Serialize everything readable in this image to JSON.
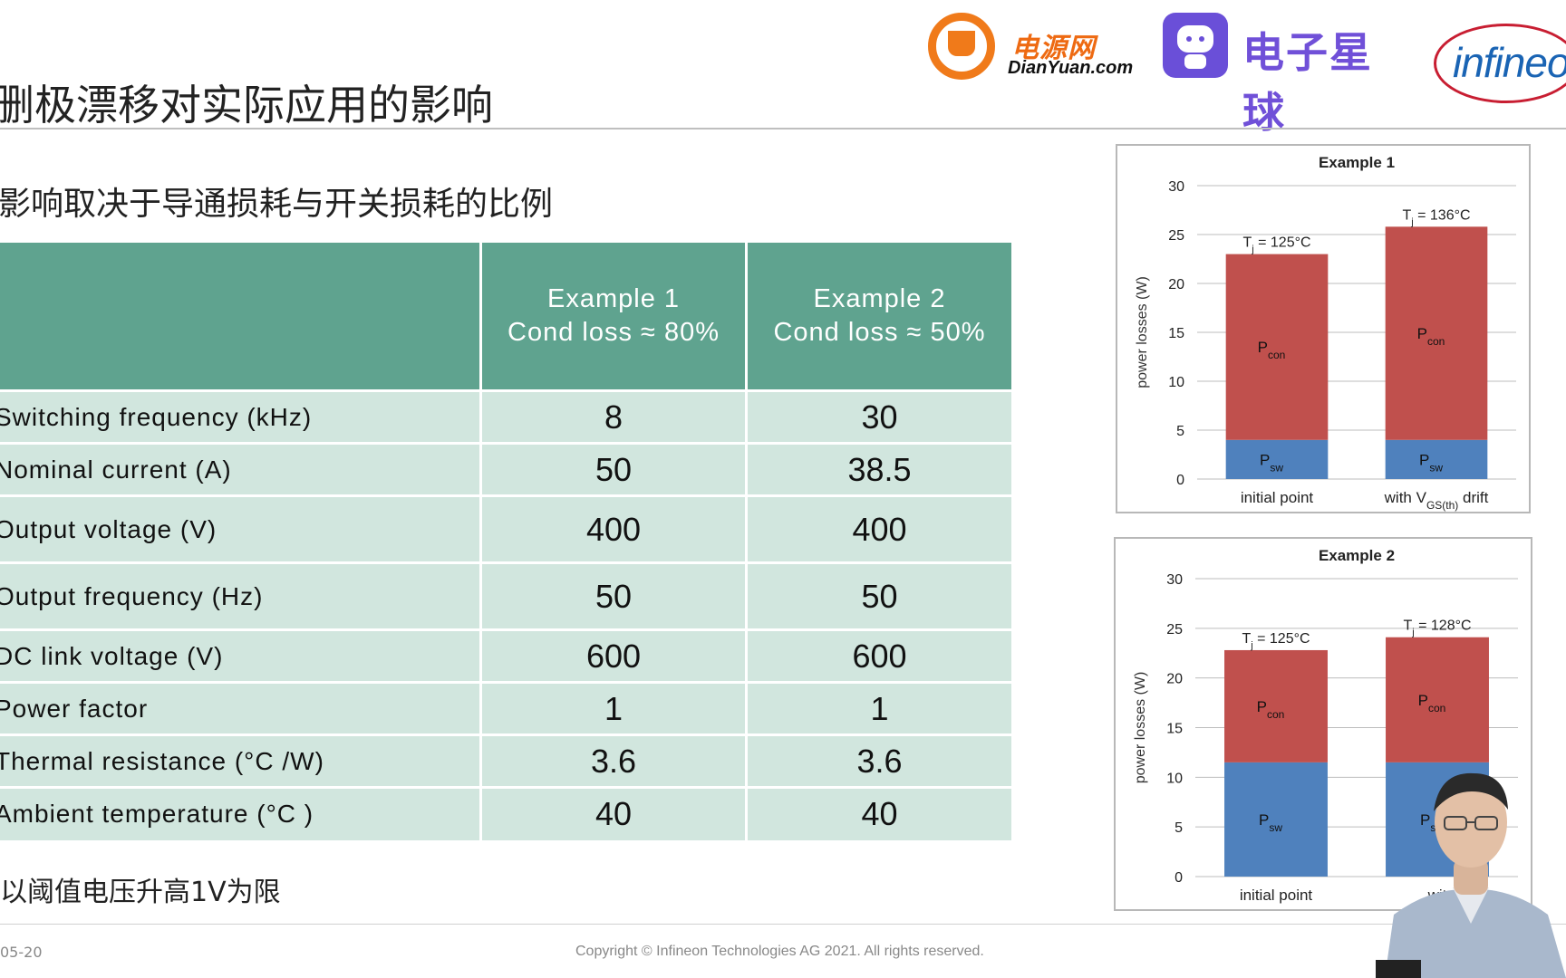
{
  "logos": {
    "dianyuan": {
      "cn": "电源网",
      "en": "DianYuan.com"
    },
    "dzxq": {
      "text": "电子星球"
    },
    "infineon": {
      "text": "infineon"
    }
  },
  "slide": {
    "title": "删极漂移对实际应用的影响",
    "subtitle": "影响取决于导通损耗与开关损耗的比例",
    "note": "以阈值电压升高1V为限",
    "footer_date": "05-20",
    "footer_copyright": "Copyright © Infineon Technologies AG 2021. All rights reserved."
  },
  "table": {
    "headers": [
      {
        "line1": "Example  1",
        "line2": "Cond loss ≈ 80%"
      },
      {
        "line1": "Example  2",
        "line2": "Cond loss ≈ 50%"
      }
    ],
    "rows": [
      {
        "label": "Switching  frequency  (kHz)",
        "v1": "8",
        "v2": "30"
      },
      {
        "label": "Nominal  current  (A)",
        "v1": "50",
        "v2": "38.5"
      },
      {
        "label": "Output  voltage  (V)",
        "v1": "400",
        "v2": "400"
      },
      {
        "label": "Output  frequency  (Hz)",
        "v1": "50",
        "v2": "50"
      },
      {
        "label": "DC  link  voltage  (V)",
        "v1": "600",
        "v2": "600"
      },
      {
        "label": "Power  factor",
        "v1": "1",
        "v2": "1"
      },
      {
        "label": "Thermal  resistance  (°C /W)",
        "v1": "3.6",
        "v2": "3.6"
      },
      {
        "label": "Ambient  temperature  (°C )",
        "v1": "40",
        "v2": "40"
      }
    ]
  },
  "colors": {
    "header_bg": "#5fa38f",
    "row_bg": "#d1e6de",
    "pcon": "#c0504d",
    "psw": "#4f81bd"
  },
  "chart_data": [
    {
      "type": "bar",
      "stacked": true,
      "title": "Example 1",
      "ylabel": "power losses (W)",
      "ylim": [
        0,
        30
      ],
      "yticks": [
        0,
        5,
        10,
        15,
        20,
        25,
        30
      ],
      "categories": [
        "initial point",
        "with V_GS(th) drift"
      ],
      "category_labels": [
        {
          "main": "initial point",
          "sub": ""
        },
        {
          "main": "with V",
          "sub": "GS(th)",
          "tail": " drift"
        }
      ],
      "series": [
        {
          "name": "P_sw",
          "base": "P",
          "sub": "sw",
          "values": [
            4,
            4
          ]
        },
        {
          "name": "P_con",
          "base": "P",
          "sub": "con",
          "values": [
            19,
            21.8
          ]
        }
      ],
      "annotations": [
        {
          "base": "T",
          "sub": "j",
          "text": " = 125°C",
          "category": 0,
          "total": 23
        },
        {
          "base": "T",
          "sub": "j",
          "text": " = 136°C",
          "category": 1,
          "total": 25.8
        }
      ]
    },
    {
      "type": "bar",
      "stacked": true,
      "title": "Example 2",
      "ylabel": "power losses (W)",
      "ylim": [
        0,
        30
      ],
      "yticks": [
        0,
        5,
        10,
        15,
        20,
        25,
        30
      ],
      "categories": [
        "initial point",
        "with V_GS(th) drift"
      ],
      "category_labels": [
        {
          "main": "initial point",
          "sub": ""
        },
        {
          "main": "wit",
          "sub": "",
          "tail": ""
        }
      ],
      "series": [
        {
          "name": "P_sw",
          "base": "P",
          "sub": "sw",
          "values": [
            11.5,
            11.5
          ]
        },
        {
          "name": "P_con",
          "base": "P",
          "sub": "con",
          "values": [
            11.3,
            12.6
          ]
        }
      ],
      "annotations": [
        {
          "base": "T",
          "sub": "j",
          "text": " = 125°C",
          "category": 0,
          "total": 22.8
        },
        {
          "base": "T",
          "sub": "j",
          "text": " = 128°C",
          "category": 1,
          "total": 24.1
        }
      ]
    }
  ]
}
